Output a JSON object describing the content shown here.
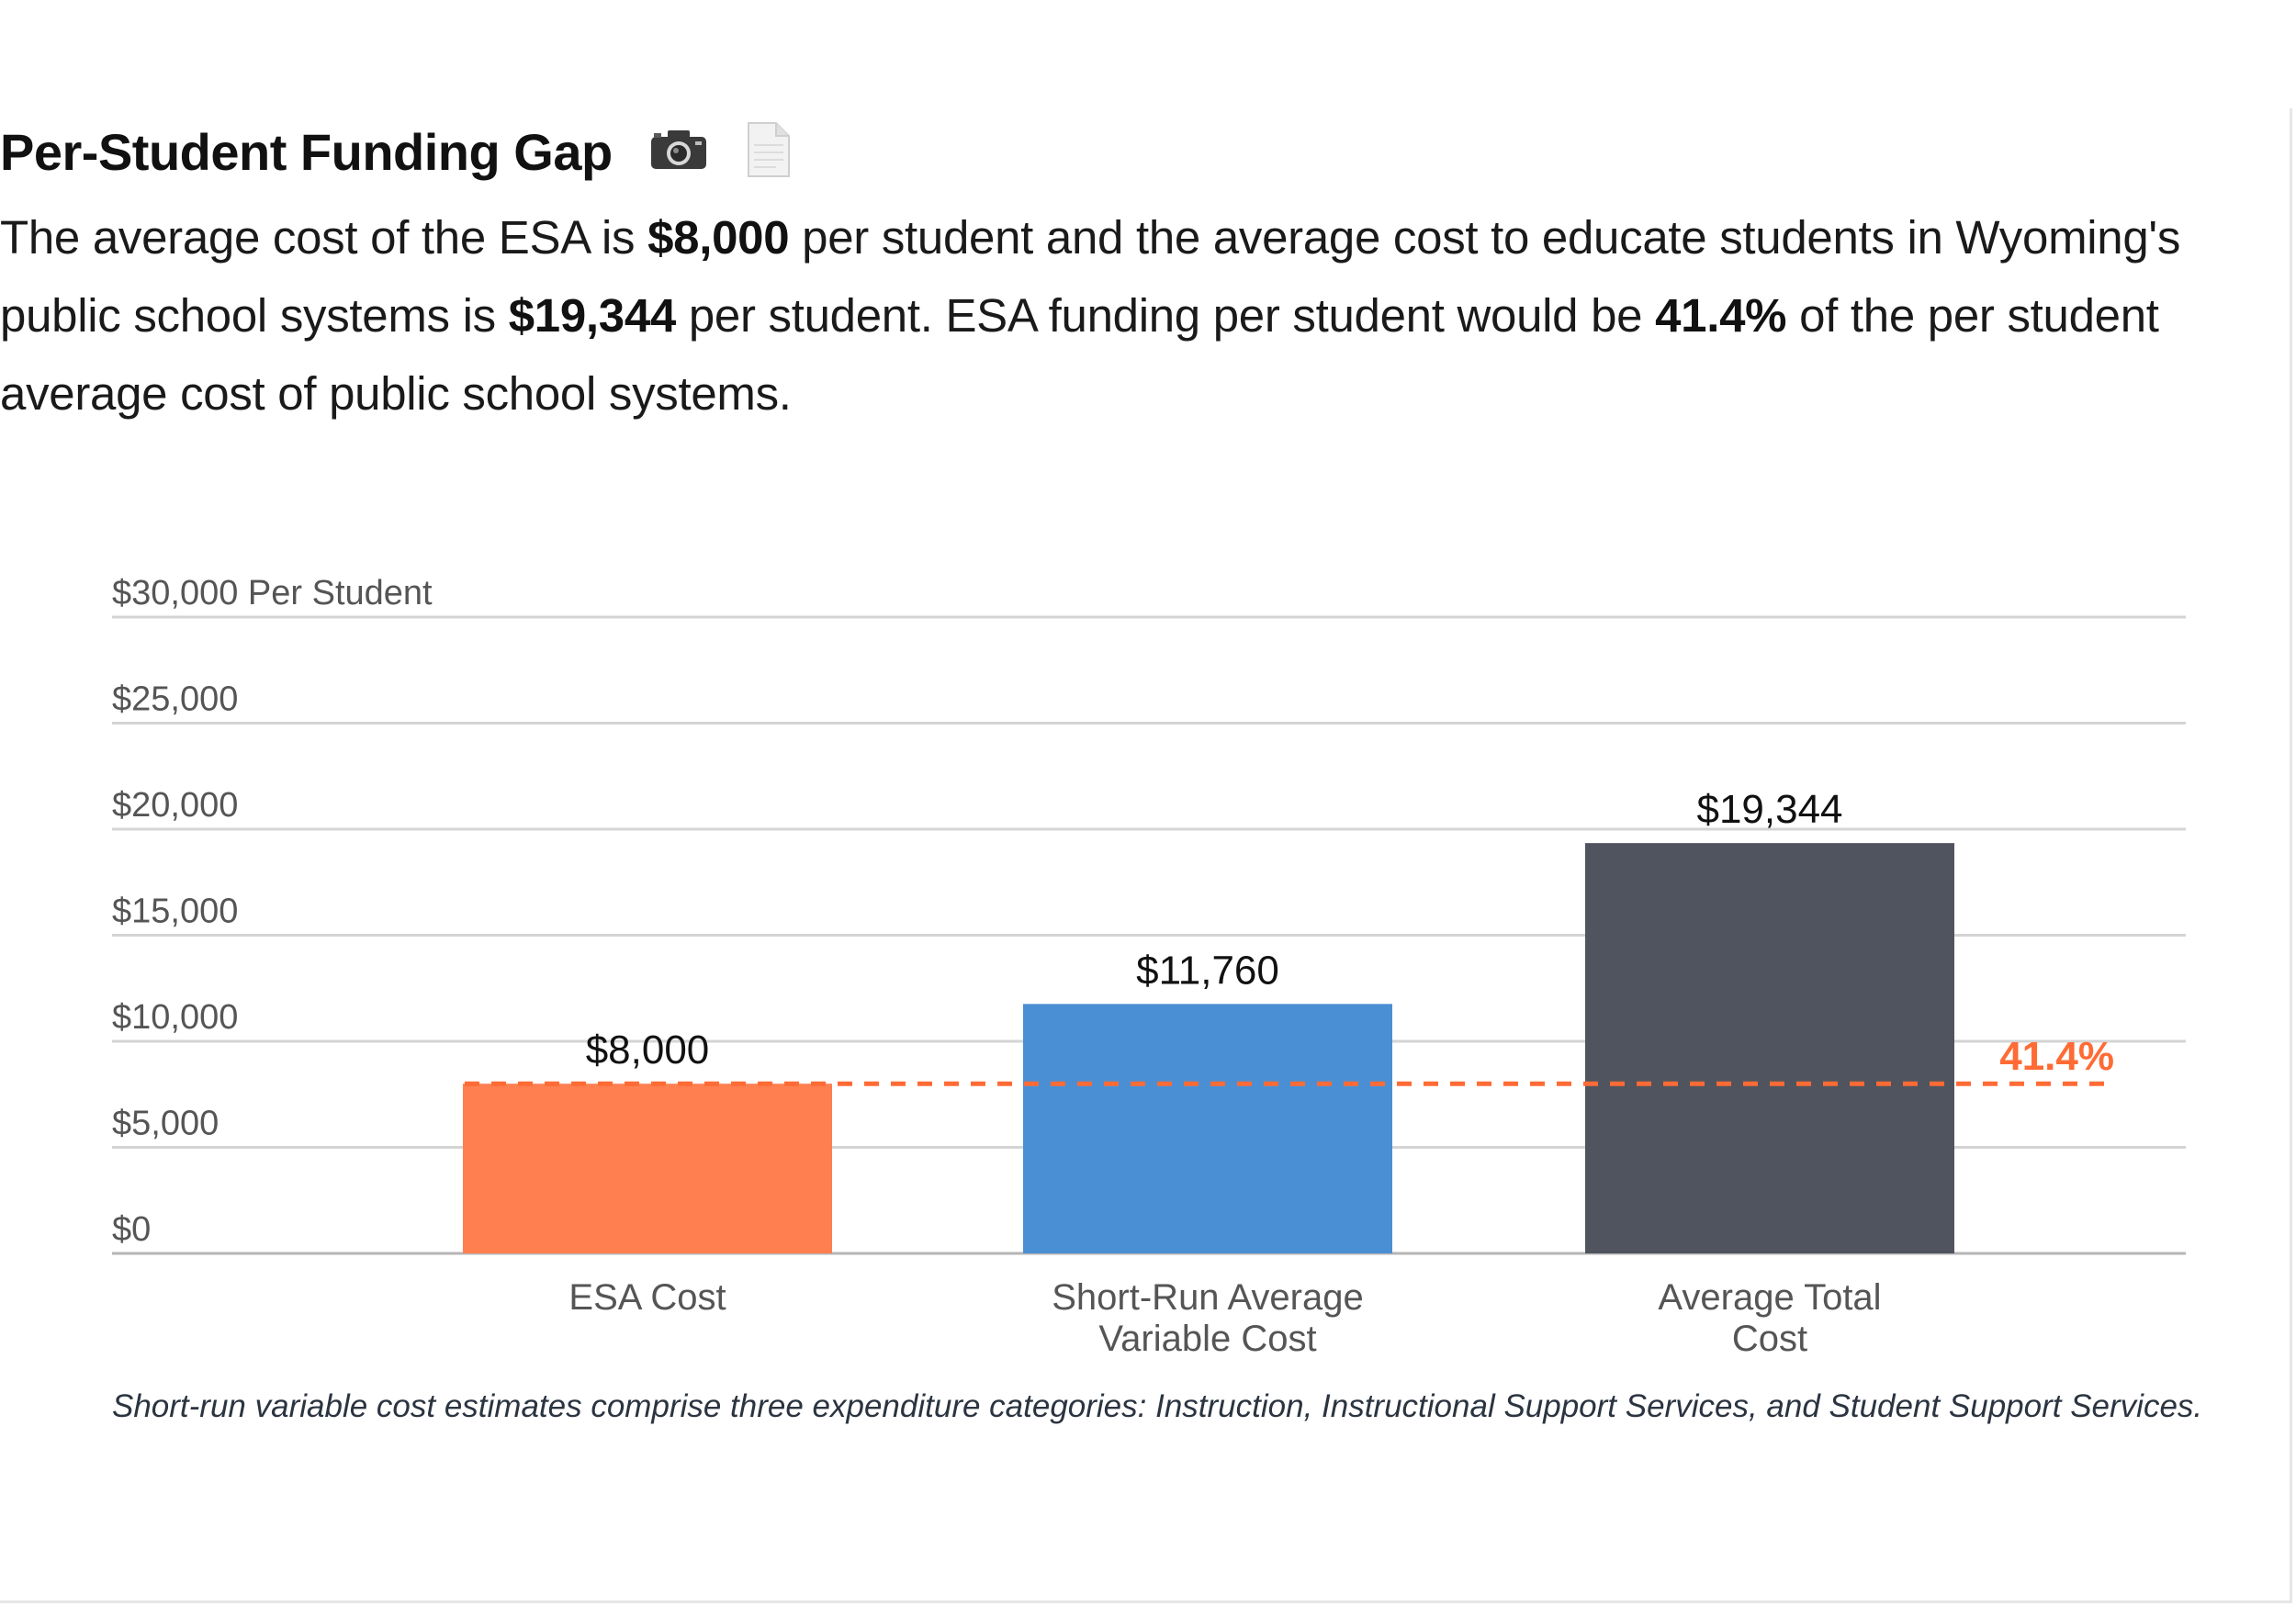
{
  "header": {
    "title": "Per-Student Funding Gap",
    "camera_icon": "camera-icon",
    "document_icon": "document-icon"
  },
  "description": {
    "p1": "The average cost of the ESA is ",
    "esa": "$8,000",
    "p2": " per student and the average cost to educate students in Wyoming's public school systems is ",
    "total": "$19,344",
    "p3": " per student. ESA funding per student would be ",
    "pct": "41.4%",
    "p4": " of the per student average cost of public school systems."
  },
  "chart_data": {
    "type": "bar",
    "categories": [
      [
        "ESA Cost"
      ],
      [
        "Short-Run Average",
        "Variable Cost"
      ],
      [
        "Average Total",
        "Cost"
      ]
    ],
    "values": [
      8000,
      11760,
      19344
    ],
    "value_labels": [
      "$8,000",
      "$11,760",
      "$19,344"
    ],
    "colors": [
      "#ff7f50",
      "#4a8fd4",
      "#4f545e"
    ],
    "ylim": [
      0,
      30000
    ],
    "yticks": [
      0,
      5000,
      10000,
      15000,
      20000,
      25000,
      30000
    ],
    "ytick_labels": [
      "$0",
      "$5,000",
      "$10,000",
      "$15,000",
      "$20,000",
      "$25,000",
      "$30,000 Per Student"
    ],
    "grid": true,
    "reference_line": {
      "value": 8000,
      "label": "41.4%",
      "color": "#ff6b35",
      "style": "dashed"
    }
  },
  "footnote": "Short-run variable cost estimates comprise three expenditure categories: Instruction, Instructional Support Services, and Student Support Services."
}
